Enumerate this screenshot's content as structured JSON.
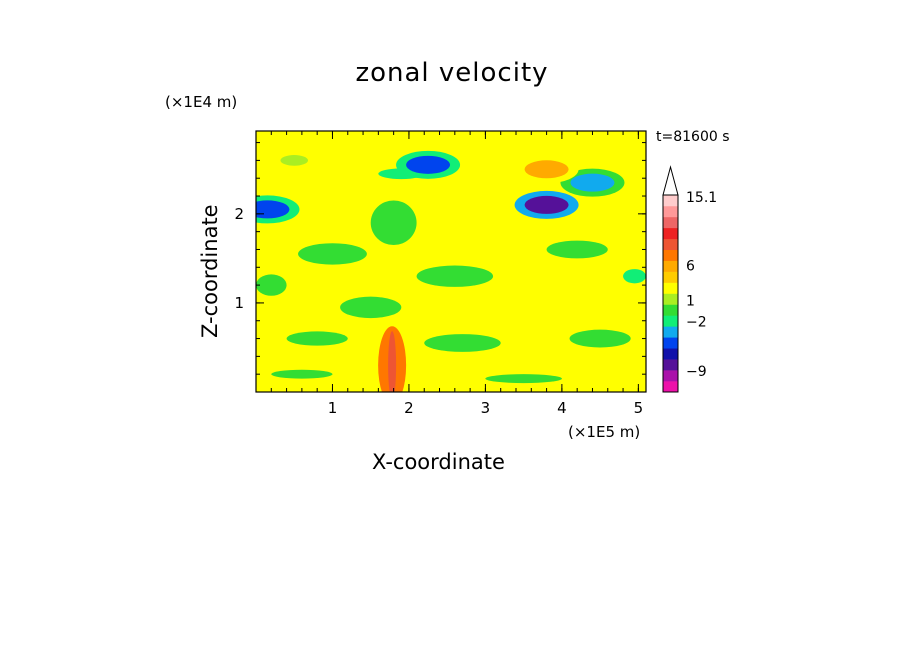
{
  "chart_data": {
    "type": "heatmap",
    "title": "zonal velocity",
    "xlabel": "X-coordinate",
    "ylabel": "Z-coordinate",
    "x_multiplier": "(×1E5 m)",
    "y_multiplier": "(×1E4 m)",
    "time_label": "t=81600 s",
    "xlim": [
      0,
      5.1
    ],
    "ylim": [
      0,
      2.93
    ],
    "x_ticks": [
      "1",
      "2",
      "3",
      "4",
      "5"
    ],
    "y_ticks": [
      "1",
      "2"
    ],
    "colorbar": {
      "labels": [
        "15.1",
        "6",
        "1",
        "−2",
        "−9"
      ],
      "label_levels": [
        15.1,
        6,
        1,
        -2,
        -9
      ],
      "colors_low_to_high": [
        "#ee11aa",
        "#aa11aa",
        "#551199",
        "#1111aa",
        "#0044ee",
        "#11aaee",
        "#11ee77",
        "#33dd33",
        "#aaee22",
        "#ffff00",
        "#ffcc00",
        "#ffaa00",
        "#ff7700",
        "#ee5533",
        "#ee2222",
        "#ee6666",
        "#ff9999",
        "#ffcccc"
      ]
    },
    "features": [
      {
        "x": 2.25,
        "z": 2.55,
        "value": -6,
        "label": "negative core"
      },
      {
        "x": 3.8,
        "z": 2.1,
        "value": -8,
        "label": "negative core"
      },
      {
        "x": 0.15,
        "z": 2.05,
        "value": -6,
        "label": "negative core"
      },
      {
        "x": 4.4,
        "z": 2.35,
        "value": -4,
        "label": "negative band"
      },
      {
        "x": 3.8,
        "z": 2.5,
        "value": 6,
        "label": "positive core"
      },
      {
        "x": 1.78,
        "z": 0.3,
        "value": 10,
        "label": "positive spike"
      }
    ]
  }
}
